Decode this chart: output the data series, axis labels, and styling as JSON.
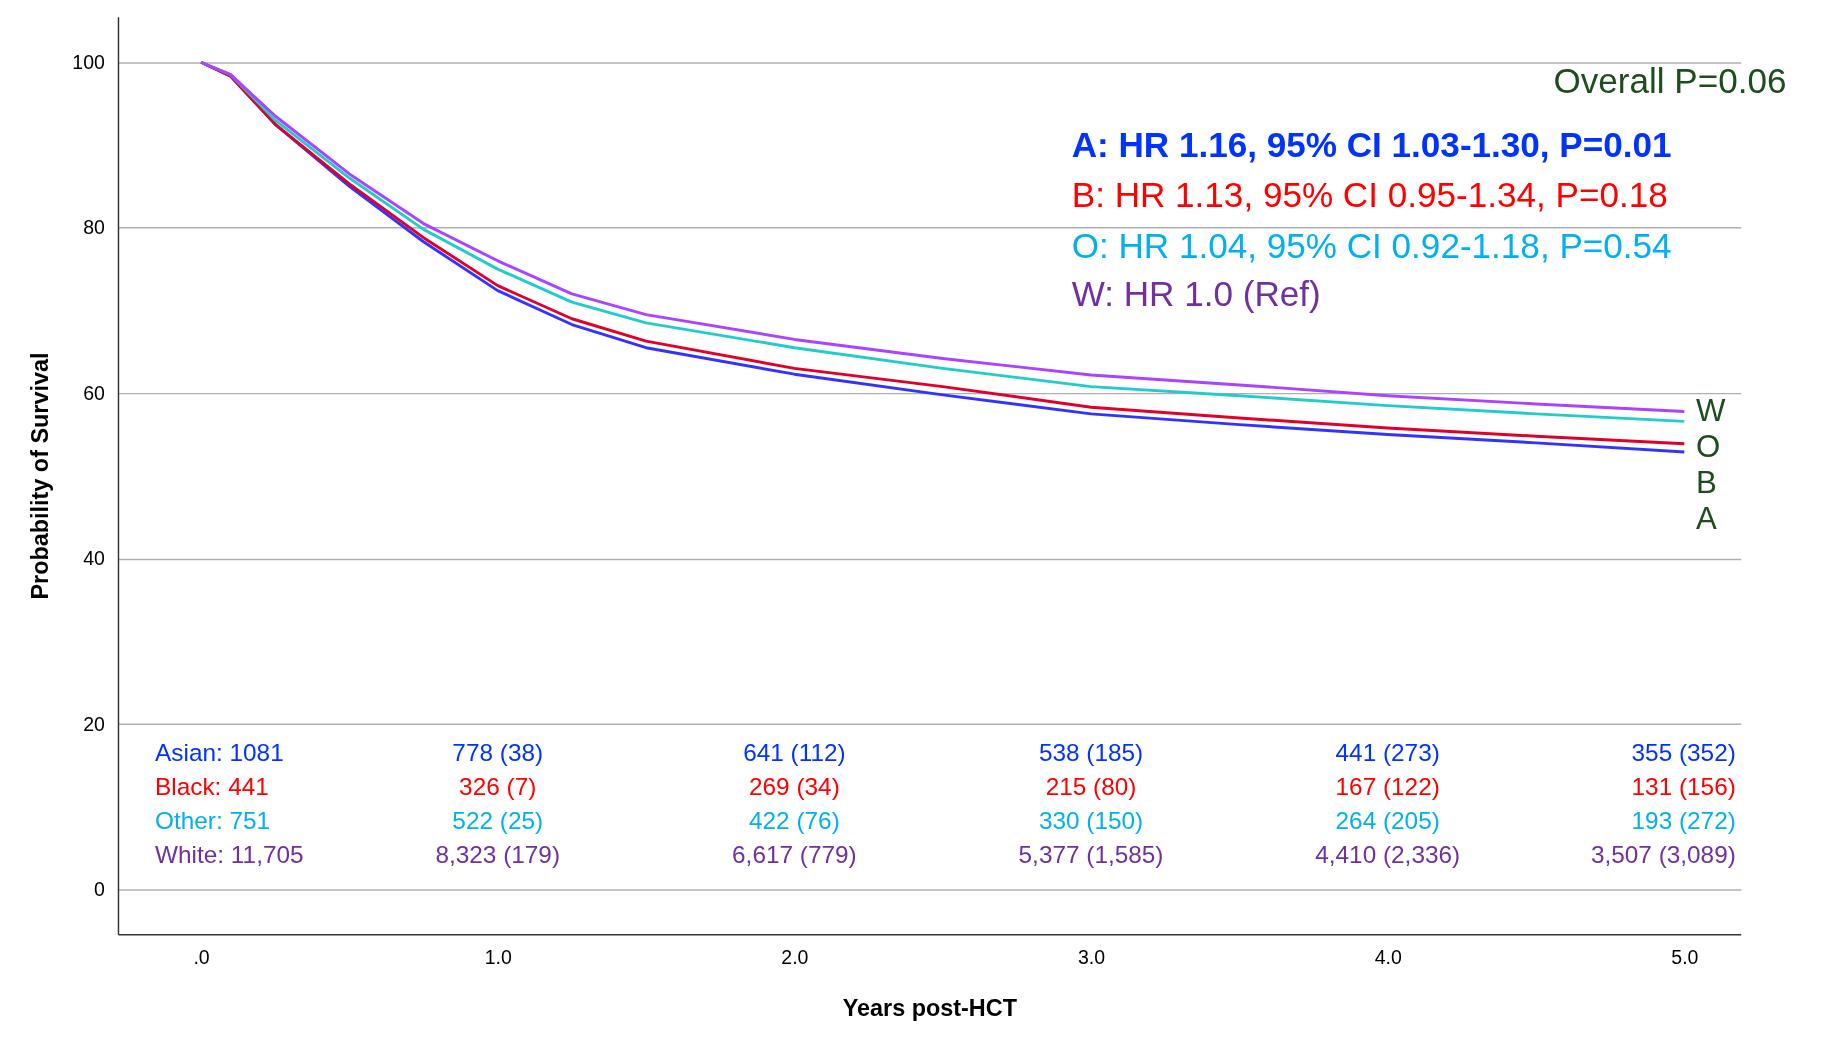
{
  "chart_data": {
    "type": "line",
    "xlabel": "Years post-HCT",
    "ylabel": "Probability of Survival",
    "xlim": [
      -0.28,
      5.19
    ],
    "ylim": [
      -5.4,
      105.5
    ],
    "xticks": [
      {
        "value": 0,
        "label": ".0"
      },
      {
        "value": 1,
        "label": "1.0"
      },
      {
        "value": 2,
        "label": "2.0"
      },
      {
        "value": 3,
        "label": "3.0"
      },
      {
        "value": 4,
        "label": "4.0"
      },
      {
        "value": 5,
        "label": "5.0"
      }
    ],
    "yticks": [
      0,
      20,
      40,
      60,
      80,
      100
    ],
    "grid": "y",
    "marker": "none",
    "line_style": "solid",
    "x": [
      0,
      0.1,
      0.25,
      0.5,
      0.75,
      1.0,
      1.25,
      1.5,
      2.0,
      2.5,
      3.0,
      3.5,
      4.0,
      4.5,
      5.0
    ],
    "series": [
      {
        "name": "A",
        "color": "#3333ff",
        "values": [
          100,
          98.3,
          92.5,
          85,
          78.3,
          72.4,
          68.3,
          65.5,
          62.3,
          59.8,
          57.5,
          56.2,
          55,
          54,
          52.9
        ]
      },
      {
        "name": "B",
        "color": "#e0002a",
        "values": [
          100,
          98.3,
          92.5,
          85.3,
          78.8,
          73,
          69,
          66.3,
          63,
          60.8,
          58.3,
          57,
          55.8,
          54.8,
          53.9
        ]
      },
      {
        "name": "O",
        "color": "#22cccc",
        "values": [
          100,
          98.5,
          93,
          86,
          79.8,
          75,
          71,
          68.5,
          65.5,
          63,
          60.8,
          59.7,
          58.5,
          57.5,
          56.6
        ]
      },
      {
        "name": "W",
        "color": "#aa44ff",
        "values": [
          100,
          98.5,
          93.5,
          86.5,
          80.5,
          76,
          72,
          69.5,
          66.5,
          64.2,
          62.2,
          61,
          59.7,
          58.7,
          57.8
        ]
      }
    ],
    "annotations": [
      "Overall P=0.06",
      "A: HR 1.16, 95% CI 1.03-1.30, P=0.01",
      "B: HR 1.13, 95% CI 0.95-1.34, P=0.18",
      "O: HR 1.04, 95% CI 0.92-1.18, P=0.54",
      "W: HR 1.0 (Ref)",
      "Asian: 1081",
      "778 (38)",
      "641 (112)",
      "538 (185)",
      "441 (273)",
      "355 (352)",
      "Black: 441",
      "326 (7)",
      "269 (34)",
      "215 (80)",
      "167 (122)",
      "131 (156)",
      "Other: 751",
      "522 (25)",
      "422 (76)",
      "330 (150)",
      "264 (205)",
      "193 (272)",
      "White: 11,705",
      "8,323 (179)",
      "6,617 (779)",
      "5,377 (1,585)",
      "4,410 (2,336)",
      "3,507 (3,089)"
    ]
  }
}
